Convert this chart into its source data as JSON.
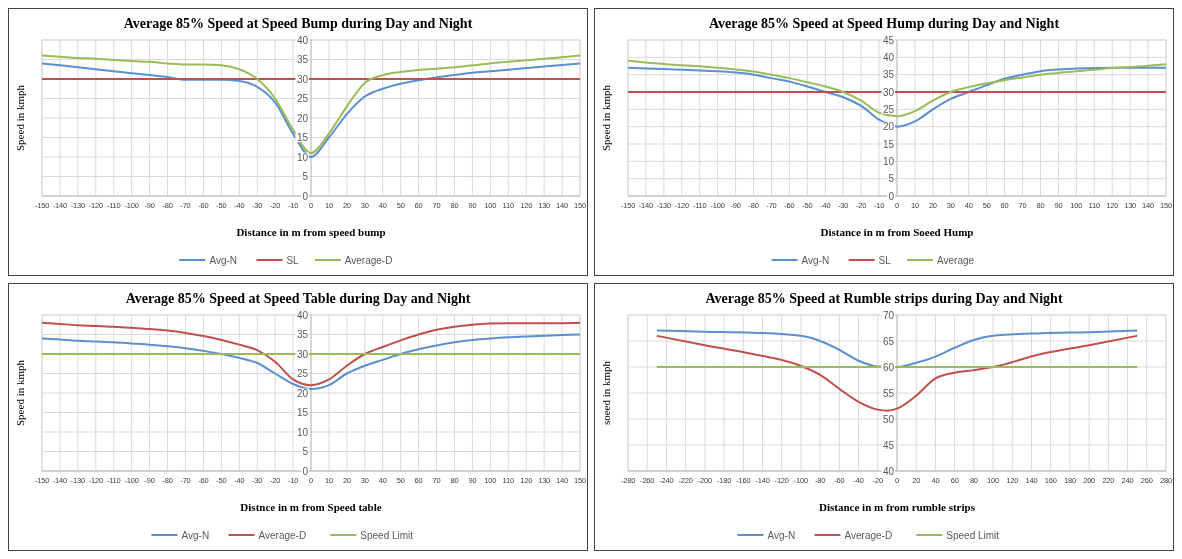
{
  "chart_data": [
    {
      "type": "line",
      "title": "Average 85% Speed at Speed Bump during Day and Night",
      "xlabel": "Distance in m from speed bump",
      "ylabel": "Speed in kmph",
      "xlim": [
        -150,
        150
      ],
      "xticks": [
        -150,
        -140,
        -130,
        -120,
        -110,
        -100,
        -90,
        -80,
        -70,
        -60,
        -50,
        -40,
        -30,
        -20,
        -10,
        0,
        10,
        20,
        30,
        40,
        50,
        60,
        70,
        80,
        90,
        100,
        110,
        120,
        130,
        140,
        150
      ],
      "ylim": [
        0,
        40
      ],
      "yticks": [
        0,
        5,
        10,
        15,
        20,
        25,
        30,
        35,
        40
      ],
      "grid": true,
      "legend": "bottom",
      "series": [
        {
          "name": "Avg-N",
          "color": "#5b8fd1",
          "x": [
            -150,
            -140,
            -130,
            -120,
            -110,
            -100,
            -90,
            -80,
            -70,
            -60,
            -50,
            -40,
            -30,
            -20,
            -10,
            0,
            10,
            20,
            30,
            40,
            50,
            60,
            70,
            80,
            90,
            100,
            110,
            120,
            130,
            140,
            150
          ],
          "values": [
            34,
            33.5,
            33,
            32.5,
            32,
            31.5,
            31,
            30.5,
            29.8,
            29.8,
            29.8,
            29.5,
            28,
            24,
            16,
            10,
            15,
            21,
            25.5,
            27.5,
            28.8,
            29.7,
            30.4,
            31,
            31.6,
            32,
            32.4,
            32.8,
            33.2,
            33.6,
            34
          ]
        },
        {
          "name": "SL",
          "color": "#c0504d",
          "x": [
            -150,
            150
          ],
          "values": [
            30,
            30
          ]
        },
        {
          "name": "Average-D",
          "color": "#9bbb59",
          "x": [
            -150,
            -140,
            -130,
            -120,
            -110,
            -100,
            -90,
            -80,
            -70,
            -60,
            -50,
            -40,
            -30,
            -20,
            -10,
            0,
            10,
            20,
            30,
            40,
            50,
            60,
            70,
            80,
            90,
            100,
            110,
            120,
            130,
            140,
            150
          ],
          "values": [
            36,
            35.7,
            35.4,
            35.2,
            34.9,
            34.6,
            34.4,
            34,
            33.7,
            33.7,
            33.5,
            32.5,
            30,
            25,
            17,
            11,
            16,
            23,
            29,
            31,
            31.8,
            32.3,
            32.6,
            33,
            33.5,
            34,
            34.4,
            34.8,
            35.2,
            35.6,
            36
          ]
        }
      ]
    },
    {
      "type": "line",
      "title": "Average 85% Speed at Speed Hump during Day and Night",
      "xlabel": "Distance  in m from Soeed Hump",
      "ylabel": "Speed in kmph",
      "xlim": [
        -150,
        150
      ],
      "xticks": [
        -150,
        -140,
        -130,
        -120,
        -110,
        -100,
        -90,
        -80,
        -70,
        -60,
        -50,
        -40,
        -30,
        -20,
        -10,
        0,
        10,
        20,
        30,
        40,
        50,
        60,
        70,
        80,
        90,
        100,
        110,
        120,
        130,
        140,
        150
      ],
      "ylim": [
        0,
        45
      ],
      "yticks": [
        0,
        5,
        10,
        15,
        20,
        25,
        30,
        35,
        40,
        45
      ],
      "grid": true,
      "legend": "bottom",
      "series": [
        {
          "name": "Avg-N",
          "color": "#5b8fd1",
          "x": [
            -150,
            -140,
            -130,
            -120,
            -110,
            -100,
            -90,
            -80,
            -70,
            -60,
            -50,
            -40,
            -30,
            -20,
            -10,
            0,
            10,
            20,
            30,
            40,
            50,
            60,
            70,
            80,
            90,
            100,
            110,
            120,
            130,
            140,
            150
          ],
          "values": [
            37,
            36.8,
            36.6,
            36.4,
            36.2,
            36,
            35.6,
            35,
            34,
            33,
            31.6,
            30,
            28.5,
            26,
            22,
            20,
            21.5,
            25,
            28,
            30,
            32,
            33.8,
            35,
            36,
            36.5,
            36.8,
            36.9,
            37,
            37,
            37,
            37
          ]
        },
        {
          "name": "SL",
          "color": "#c0504d",
          "x": [
            -150,
            150
          ],
          "values": [
            30,
            30
          ]
        },
        {
          "name": "Average",
          "color": "#9bbb59",
          "x": [
            -150,
            -140,
            -130,
            -120,
            -110,
            -100,
            -90,
            -80,
            -70,
            -60,
            -50,
            -40,
            -30,
            -20,
            -10,
            0,
            10,
            20,
            30,
            40,
            50,
            60,
            70,
            80,
            90,
            100,
            110,
            120,
            130,
            140,
            150
          ],
          "values": [
            39,
            38.5,
            38.1,
            37.7,
            37.4,
            37,
            36.5,
            35.9,
            35,
            34,
            32.8,
            31.6,
            30,
            27.5,
            24,
            23,
            24.5,
            27.5,
            30,
            31.4,
            32.5,
            33.4,
            34.2,
            35,
            35.5,
            36,
            36.4,
            36.9,
            37.2,
            37.6,
            38
          ]
        }
      ]
    },
    {
      "type": "line",
      "title": "Average 85% Speed at Speed Table during Day and Night",
      "xlabel": "Distnce in m from Speed table",
      "ylabel": "Speed in kmph",
      "xlim": [
        -150,
        150
      ],
      "xticks": [
        -150,
        -140,
        -130,
        -120,
        -110,
        -100,
        -90,
        -80,
        -70,
        -60,
        -50,
        -40,
        -30,
        -20,
        -10,
        0,
        10,
        20,
        30,
        40,
        50,
        60,
        70,
        80,
        90,
        100,
        110,
        120,
        130,
        140,
        150
      ],
      "ylim": [
        0,
        40
      ],
      "yticks": [
        0,
        5,
        10,
        15,
        20,
        25,
        30,
        35,
        40
      ],
      "grid": true,
      "legend": "bottom",
      "series": [
        {
          "name": "Avg-N",
          "color": "#5b8fd1",
          "x": [
            -150,
            -140,
            -130,
            -120,
            -110,
            -100,
            -90,
            -80,
            -70,
            -60,
            -50,
            -40,
            -30,
            -20,
            -10,
            0,
            10,
            20,
            30,
            40,
            50,
            60,
            70,
            80,
            90,
            100,
            110,
            120,
            130,
            140,
            150
          ],
          "values": [
            34,
            33.7,
            33.4,
            33.2,
            33,
            32.7,
            32.4,
            32,
            31.5,
            30.8,
            30,
            29,
            27.7,
            25,
            22.3,
            21,
            22,
            25,
            27,
            28.5,
            30,
            31.2,
            32.2,
            33,
            33.6,
            34,
            34.3,
            34.5,
            34.7,
            34.9,
            35
          ]
        },
        {
          "name": "Average-D",
          "color": "#c0504d",
          "x": [
            -150,
            -140,
            -130,
            -120,
            -110,
            -100,
            -90,
            -80,
            -70,
            -60,
            -50,
            -40,
            -30,
            -20,
            -10,
            0,
            10,
            20,
            30,
            40,
            50,
            60,
            70,
            80,
            90,
            100,
            110,
            120,
            130,
            140,
            150
          ],
          "values": [
            38,
            37.7,
            37.4,
            37.2,
            37,
            36.7,
            36.4,
            36,
            35.4,
            34.6,
            33.6,
            32.4,
            31,
            28,
            23.5,
            22,
            23.5,
            27,
            30,
            31.8,
            33.5,
            35,
            36.2,
            37,
            37.5,
            37.8,
            37.9,
            37.9,
            37.9,
            37.9,
            38
          ]
        },
        {
          "name": "Speed Limit",
          "color": "#9bbb59",
          "x": [
            -150,
            150
          ],
          "values": [
            30,
            30
          ]
        }
      ]
    },
    {
      "type": "line",
      "title": "Average 85% Speed at Rumble strips during Day and Night",
      "xlabel": "Distance in m from rumble strips",
      "ylabel": "soeed in kmph",
      "xlim": [
        -280,
        280
      ],
      "xticks": [
        -280,
        -260,
        -240,
        -220,
        -200,
        -180,
        -160,
        -140,
        -120,
        -100,
        -80,
        -60,
        -40,
        -20,
        0,
        20,
        40,
        60,
        80,
        100,
        120,
        140,
        160,
        180,
        200,
        220,
        240,
        260,
        280
      ],
      "ylim": [
        40,
        70
      ],
      "yticks": [
        40,
        45,
        50,
        55,
        60,
        65,
        70
      ],
      "grid": true,
      "legend": "bottom",
      "series": [
        {
          "name": "Avg-N",
          "color": "#5b8fd1",
          "x": [
            -250,
            -200,
            -150,
            -100,
            -80,
            -60,
            -40,
            -20,
            0,
            20,
            40,
            60,
            80,
            100,
            150,
            200,
            250
          ],
          "values": [
            67,
            66.8,
            66.6,
            66,
            65,
            63.3,
            61.2,
            60.1,
            60,
            60.8,
            62,
            63.7,
            65.2,
            66,
            66.5,
            66.7,
            67
          ]
        },
        {
          "name": "Average-D",
          "color": "#c0504d",
          "x": [
            -250,
            -200,
            -150,
            -100,
            -80,
            -60,
            -40,
            -20,
            -10,
            0,
            20,
            40,
            60,
            80,
            100,
            150,
            200,
            250
          ],
          "values": [
            66,
            64.2,
            62.5,
            60.2,
            58.5,
            55.8,
            53.3,
            51.8,
            51.6,
            52,
            54.5,
            57.8,
            58.9,
            59.4,
            60,
            62.5,
            64.2,
            66
          ]
        },
        {
          "name": "Speed Limit",
          "color": "#9bbb59",
          "x": [
            -250,
            250
          ],
          "values": [
            60,
            60
          ]
        }
      ]
    }
  ]
}
